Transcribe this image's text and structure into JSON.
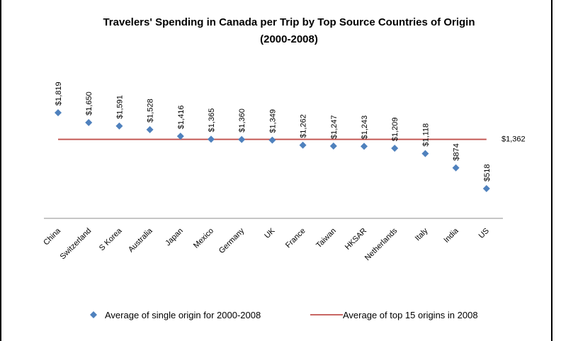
{
  "chart_data": {
    "type": "scatter",
    "title_line1": "Travelers' Spending in Canada per Trip by Top Source Countries of Origin",
    "title_line2": "(2000-2008)",
    "categories": [
      "China",
      "Switzerland",
      "S Korea",
      "Australia",
      "Japan",
      "Mexico",
      "Germany",
      "UK",
      "France",
      "Taiwan",
      "HKSAR",
      "Netherlands",
      "Italy",
      "India",
      "US"
    ],
    "series": [
      {
        "name": "Average of single origin for 2000-2008",
        "values": [
          1819,
          1650,
          1591,
          1528,
          1416,
          1365,
          1360,
          1349,
          1262,
          1247,
          1243,
          1209,
          1118,
          874,
          518
        ],
        "labels": [
          "$1,819",
          "$1,650",
          "$1,591",
          "$1,528",
          "$1,416",
          "$1,365",
          "$1,360",
          "$1,349",
          "$1,262",
          "$1,247",
          "$1,243",
          "$1,209",
          "$1,118",
          "$874",
          "$518"
        ],
        "color": "#4f81bd",
        "marker": "diamond"
      },
      {
        "name": "Average of top 15 origins in 2008",
        "value": 1362,
        "label": "$1,362",
        "color": "#c0504d",
        "style": "line"
      }
    ],
    "ylim": [
      0,
      2200
    ],
    "grid": false,
    "legend": "bottom",
    "xlabel": "",
    "ylabel": ""
  }
}
